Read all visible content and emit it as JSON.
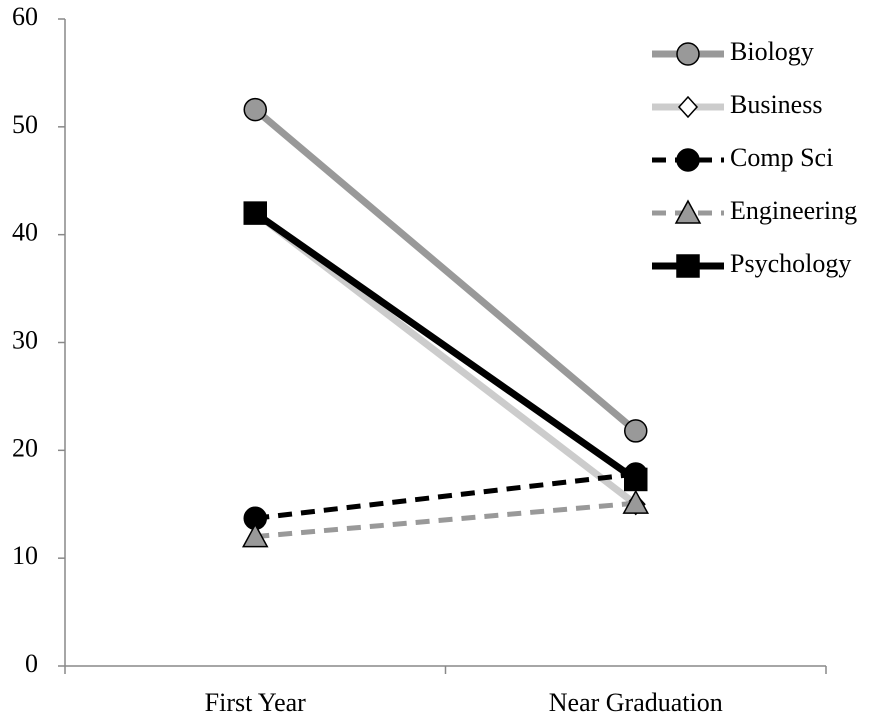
{
  "chart_data": {
    "type": "line",
    "categories": [
      "First Year",
      "Near Graduation"
    ],
    "series": [
      {
        "name": "Biology",
        "color": "#999999",
        "marker": "circle",
        "dashed": false,
        "values": [
          51.6,
          21.8
        ]
      },
      {
        "name": "Business",
        "color": "#cccccc",
        "marker": "diamond",
        "dashed": false,
        "values": [
          42,
          15
        ]
      },
      {
        "name": "Comp Sci",
        "color": "#000000",
        "marker": "circle",
        "dashed": true,
        "values": [
          13.7,
          17.8
        ]
      },
      {
        "name": "Engineering",
        "color": "#999999",
        "marker": "triangle",
        "dashed": true,
        "values": [
          12,
          15.1
        ]
      },
      {
        "name": "Psychology",
        "color": "#000000",
        "marker": "square",
        "dashed": false,
        "values": [
          42,
          17.3
        ]
      }
    ],
    "ylim": [
      0,
      60
    ],
    "yticks": [
      0,
      10,
      20,
      30,
      40,
      50,
      60
    ],
    "legend": "top-right"
  }
}
